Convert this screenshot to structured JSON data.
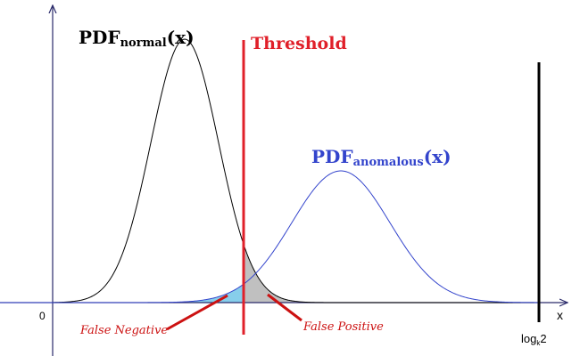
{
  "labels": {
    "normal_main": "PDF",
    "normal_sub": "normal",
    "normal_tail": "(x)",
    "anomalous_main": "PDF",
    "anomalous_sub": "anomalous",
    "anomalous_tail": "(x)",
    "threshold": "Threshold",
    "false_negative": "False Negative",
    "false_positive": "False Positive",
    "origin": "0",
    "x_axis": "x",
    "right_bound_main": "log",
    "right_bound_sub": "k",
    "right_bound_tail": "2"
  },
  "colors": {
    "normal_curve": "#000000",
    "anomalous_curve": "#3344cc",
    "threshold_line": "#e0202a",
    "false_negative_fill": "#87ceeb",
    "false_positive_fill": "#c0c0c0",
    "annotation_text": "#cc1111",
    "axis": "#2a2a6a"
  }
}
